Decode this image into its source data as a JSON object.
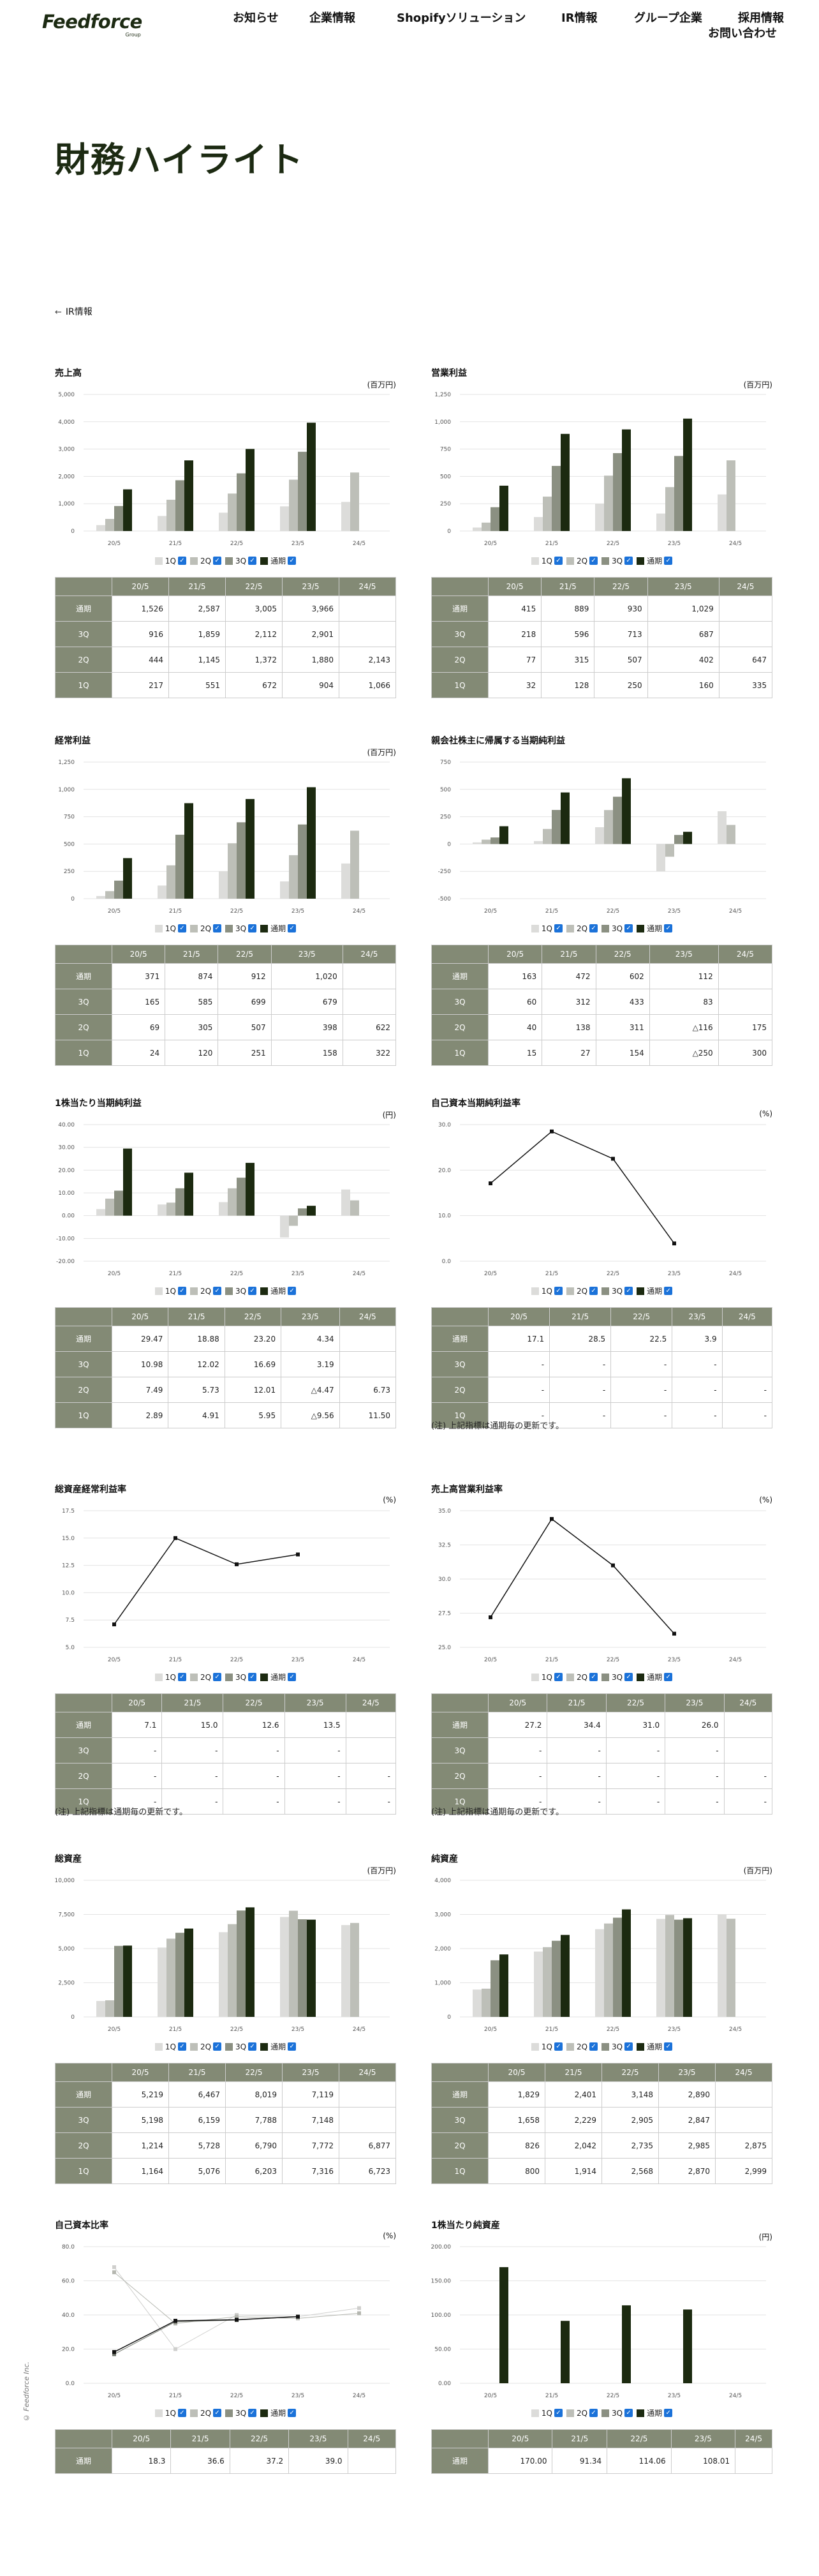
{
  "header": {
    "logo": "Feedforce",
    "logo_sub": "Group",
    "nav": [
      "お知らせ",
      "企業情報",
      "Shopifyソリューション",
      "IR情報",
      "グループ企業",
      "採用情報"
    ],
    "contact": "お問い合わせ"
  },
  "page_title": "財務ハイライト",
  "back_link": "IR情報",
  "copyright": "© Feedforce Inc.",
  "colors": {
    "q1": "#dcdcda",
    "q2": "#bdbfb8",
    "q3": "#8b9082",
    "fy": "#1c2a10",
    "header_cell": "#838a75",
    "checkbox": "#1b72d9"
  },
  "legend": [
    "1Q",
    "2Q",
    "3Q",
    "通期"
  ],
  "years": [
    "20/5",
    "21/5",
    "22/5",
    "23/5",
    "24/5"
  ],
  "row_labels": [
    "通期",
    "3Q",
    "2Q",
    "1Q"
  ],
  "note_text": "(注) 上記指標は通期毎の更新です。",
  "sections": [
    {
      "title": "売上高",
      "unit": "(百万円)",
      "chart_data": {
        "type": "bar",
        "ylim": [
          0,
          5000
        ],
        "yticks": [
          "0",
          "1,000",
          "2,000",
          "3,000",
          "4,000",
          "5,000"
        ],
        "series": [
          {
            "name": "1Q",
            "values": [
              217,
              551,
              672,
              904,
              1066
            ]
          },
          {
            "name": "2Q",
            "values": [
              444,
              1145,
              1372,
              1880,
              2143
            ]
          },
          {
            "name": "3Q",
            "values": [
              916,
              1859,
              2112,
              2901,
              null
            ]
          },
          {
            "name": "通期",
            "values": [
              1526,
              2587,
              3005,
              3966,
              null
            ]
          }
        ]
      },
      "rows": [
        [
          "1,526",
          "2,587",
          "3,005",
          "3,966",
          ""
        ],
        [
          "916",
          "1,859",
          "2,112",
          "2,901",
          ""
        ],
        [
          "444",
          "1,145",
          "1,372",
          "1,880",
          "2,143"
        ],
        [
          "217",
          "551",
          "672",
          "904",
          "1,066"
        ]
      ]
    },
    {
      "title": "営業利益",
      "unit": "(百万円)",
      "chart_data": {
        "type": "bar",
        "ylim": [
          0,
          1250
        ],
        "yticks": [
          "0",
          "250",
          "500",
          "750",
          "1,000",
          "1,250"
        ],
        "series": [
          {
            "name": "1Q",
            "values": [
              32,
              128,
              250,
              160,
              335
            ]
          },
          {
            "name": "2Q",
            "values": [
              77,
              315,
              507,
              402,
              647
            ]
          },
          {
            "name": "3Q",
            "values": [
              218,
              596,
              713,
              687,
              null
            ]
          },
          {
            "name": "通期",
            "values": [
              415,
              889,
              930,
              1029,
              null
            ]
          }
        ]
      },
      "rows": [
        [
          "415",
          "889",
          "930",
          "1,029",
          ""
        ],
        [
          "218",
          "596",
          "713",
          "687",
          ""
        ],
        [
          "77",
          "315",
          "507",
          "402",
          "647"
        ],
        [
          "32",
          "128",
          "250",
          "160",
          "335"
        ]
      ]
    },
    {
      "title": "経常利益",
      "unit": "(百万円)",
      "chart_data": {
        "type": "bar",
        "ylim": [
          0,
          1250
        ],
        "yticks": [
          "0",
          "250",
          "500",
          "750",
          "1,000",
          "1,250"
        ],
        "series": [
          {
            "name": "1Q",
            "values": [
              24,
              120,
              251,
              158,
              322
            ]
          },
          {
            "name": "2Q",
            "values": [
              69,
              305,
              507,
              398,
              622
            ]
          },
          {
            "name": "3Q",
            "values": [
              165,
              585,
              699,
              679,
              null
            ]
          },
          {
            "name": "通期",
            "values": [
              371,
              874,
              912,
              1020,
              null
            ]
          }
        ]
      },
      "rows": [
        [
          "371",
          "874",
          "912",
          "1,020",
          ""
        ],
        [
          "165",
          "585",
          "699",
          "679",
          ""
        ],
        [
          "69",
          "305",
          "507",
          "398",
          "622"
        ],
        [
          "24",
          "120",
          "251",
          "158",
          "322"
        ]
      ]
    },
    {
      "title": "親会社株主に帰属する当期純利益",
      "unit": "",
      "chart_data": {
        "type": "bar",
        "ylim": [
          -500,
          750
        ],
        "yticks": [
          "-500",
          "-250",
          "0",
          "250",
          "500",
          "750"
        ],
        "series": [
          {
            "name": "1Q",
            "values": [
              15,
              27,
              154,
              -250,
              300
            ]
          },
          {
            "name": "2Q",
            "values": [
              40,
              138,
              311,
              -116,
              175
            ]
          },
          {
            "name": "3Q",
            "values": [
              60,
              312,
              433,
              83,
              null
            ]
          },
          {
            "name": "通期",
            "values": [
              163,
              472,
              602,
              112,
              null
            ]
          }
        ]
      },
      "rows": [
        [
          "163",
          "472",
          "602",
          "112",
          ""
        ],
        [
          "60",
          "312",
          "433",
          "83",
          ""
        ],
        [
          "40",
          "138",
          "311",
          "△116",
          "175"
        ],
        [
          "15",
          "27",
          "154",
          "△250",
          "300"
        ]
      ]
    },
    {
      "title": "1株当たり当期純利益",
      "unit": "(円)",
      "chart_data": {
        "type": "bar",
        "ylim": [
          -20,
          40
        ],
        "yticks": [
          "-20.00",
          "-10.00",
          "0.00",
          "10.00",
          "20.00",
          "30.00",
          "40.00"
        ],
        "series": [
          {
            "name": "1Q",
            "values": [
              2.89,
              4.91,
              5.95,
              -9.56,
              11.5
            ]
          },
          {
            "name": "2Q",
            "values": [
              7.49,
              5.73,
              12.01,
              -4.47,
              6.73
            ]
          },
          {
            "name": "3Q",
            "values": [
              10.98,
              12.02,
              16.69,
              3.19,
              null
            ]
          },
          {
            "name": "通期",
            "values": [
              29.47,
              18.88,
              23.2,
              4.34,
              null
            ]
          }
        ]
      },
      "rows": [
        [
          "29.47",
          "18.88",
          "23.20",
          "4.34",
          ""
        ],
        [
          "10.98",
          "12.02",
          "16.69",
          "3.19",
          ""
        ],
        [
          "7.49",
          "5.73",
          "12.01",
          "△4.47",
          "6.73"
        ],
        [
          "2.89",
          "4.91",
          "5.95",
          "△9.56",
          "11.50"
        ]
      ]
    },
    {
      "title": "自己資本当期純利益率",
      "unit": "(%)",
      "chart_data": {
        "type": "line",
        "ylim": [
          0,
          30
        ],
        "yticks": [
          "0.0",
          "10.0",
          "20.0",
          "30.0"
        ],
        "series": [
          {
            "name": "通期",
            "values": [
              17.1,
              28.5,
              22.5,
              3.9,
              null
            ]
          }
        ]
      },
      "rows": [
        [
          "17.1",
          "28.5",
          "22.5",
          "3.9",
          ""
        ],
        [
          "-",
          "-",
          "-",
          "-",
          ""
        ],
        [
          "-",
          "-",
          "-",
          "-",
          "-"
        ],
        [
          "-",
          "-",
          "-",
          "-",
          "-"
        ]
      ],
      "note": true
    },
    {
      "title": "総資産経常利益率",
      "unit": "(%)",
      "chart_data": {
        "type": "line",
        "ylim": [
          5,
          17.5
        ],
        "yticks": [
          "5.0",
          "7.5",
          "10.0",
          "12.5",
          "15.0",
          "17.5"
        ],
        "series": [
          {
            "name": "通期",
            "values": [
              7.1,
              15.0,
              12.6,
              13.5,
              null
            ]
          }
        ]
      },
      "rows": [
        [
          "7.1",
          "15.0",
          "12.6",
          "13.5",
          ""
        ],
        [
          "-",
          "-",
          "-",
          "-",
          ""
        ],
        [
          "-",
          "-",
          "-",
          "-",
          "-"
        ],
        [
          "-",
          "-",
          "-",
          "-",
          "-"
        ]
      ],
      "note": true
    },
    {
      "title": "売上高営業利益率",
      "unit": "(%)",
      "chart_data": {
        "type": "line",
        "ylim": [
          25,
          35
        ],
        "yticks": [
          "25.0",
          "27.5",
          "30.0",
          "32.5",
          "35.0"
        ],
        "series": [
          {
            "name": "通期",
            "values": [
              27.2,
              34.4,
              31.0,
              26.0,
              null
            ]
          }
        ]
      },
      "rows": [
        [
          "27.2",
          "34.4",
          "31.0",
          "26.0",
          ""
        ],
        [
          "-",
          "-",
          "-",
          "-",
          ""
        ],
        [
          "-",
          "-",
          "-",
          "-",
          "-"
        ],
        [
          "-",
          "-",
          "-",
          "-",
          "-"
        ]
      ],
      "note": true
    },
    {
      "title": "総資産",
      "unit": "(百万円)",
      "chart_data": {
        "type": "bar",
        "ylim": [
          0,
          10000
        ],
        "yticks": [
          "0",
          "2,500",
          "5,000",
          "7,500",
          "10,000"
        ],
        "series": [
          {
            "name": "1Q",
            "values": [
              1164,
              5076,
              6203,
              7316,
              6723
            ]
          },
          {
            "name": "2Q",
            "values": [
              1214,
              5728,
              6790,
              7772,
              6877
            ]
          },
          {
            "name": "3Q",
            "values": [
              5198,
              6159,
              7788,
              7148,
              null
            ]
          },
          {
            "name": "通期",
            "values": [
              5219,
              6467,
              8019,
              7119,
              null
            ]
          }
        ]
      },
      "rows": [
        [
          "5,219",
          "6,467",
          "8,019",
          "7,119",
          ""
        ],
        [
          "5,198",
          "6,159",
          "7,788",
          "7,148",
          ""
        ],
        [
          "1,214",
          "5,728",
          "6,790",
          "7,772",
          "6,877"
        ],
        [
          "1,164",
          "5,076",
          "6,203",
          "7,316",
          "6,723"
        ]
      ]
    },
    {
      "title": "純資産",
      "unit": "(百万円)",
      "chart_data": {
        "type": "bar",
        "ylim": [
          0,
          4000
        ],
        "yticks": [
          "0",
          "1,000",
          "2,000",
          "3,000",
          "4,000"
        ],
        "series": [
          {
            "name": "1Q",
            "values": [
              800,
              1914,
              2568,
              2870,
              2999
            ]
          },
          {
            "name": "2Q",
            "values": [
              826,
              2042,
              2735,
              2985,
              2875
            ]
          },
          {
            "name": "3Q",
            "values": [
              1658,
              2229,
              2905,
              2847,
              null
            ]
          },
          {
            "name": "通期",
            "values": [
              1829,
              2401,
              3148,
              2890,
              null
            ]
          }
        ]
      },
      "rows": [
        [
          "1,829",
          "2,401",
          "3,148",
          "2,890",
          ""
        ],
        [
          "1,658",
          "2,229",
          "2,905",
          "2,847",
          ""
        ],
        [
          "826",
          "2,042",
          "2,735",
          "2,985",
          "2,875"
        ],
        [
          "800",
          "1,914",
          "2,568",
          "2,870",
          "2,999"
        ]
      ]
    },
    {
      "title": "自己資本比率",
      "unit": "(%)",
      "chart_data": {
        "type": "line",
        "ylim": [
          0,
          80
        ],
        "yticks": [
          "0.0",
          "20.0",
          "40.0",
          "60.0",
          "80.0"
        ],
        "series": [
          {
            "name": "1Q",
            "values": [
              68,
              20,
              40,
              39,
              44
            ]
          },
          {
            "name": "2Q",
            "values": [
              65,
              35,
              39,
              38,
              41
            ]
          },
          {
            "name": "3Q",
            "values": [
              17,
              36,
              37,
              39,
              null
            ]
          },
          {
            "name": "通期",
            "values": [
              18.3,
              36.6,
              37.2,
              39.0,
              null
            ]
          }
        ]
      },
      "rows": [
        [
          "18.3",
          "36.6",
          "37.2",
          "39.0",
          ""
        ]
      ],
      "partial": true
    },
    {
      "title": "1株当たり純資産",
      "unit": "(円)",
      "chart_data": {
        "type": "bar",
        "ylim": [
          0,
          200
        ],
        "yticks": [
          "0.00",
          "50.00",
          "100.00",
          "150.00",
          "200.00"
        ],
        "series": [
          {
            "name": "1Q",
            "values": [
              null,
              null,
              null,
              null,
              null
            ]
          },
          {
            "name": "2Q",
            "values": [
              null,
              null,
              null,
              null,
              null
            ]
          },
          {
            "name": "3Q",
            "values": [
              null,
              null,
              null,
              null,
              null
            ]
          },
          {
            "name": "通期",
            "values": [
              170.0,
              91.34,
              114.06,
              108.01,
              null
            ]
          }
        ]
      },
      "rows": [
        [
          "170.00",
          "91.34",
          "114.06",
          "108.01",
          ""
        ]
      ],
      "partial": true
    }
  ]
}
